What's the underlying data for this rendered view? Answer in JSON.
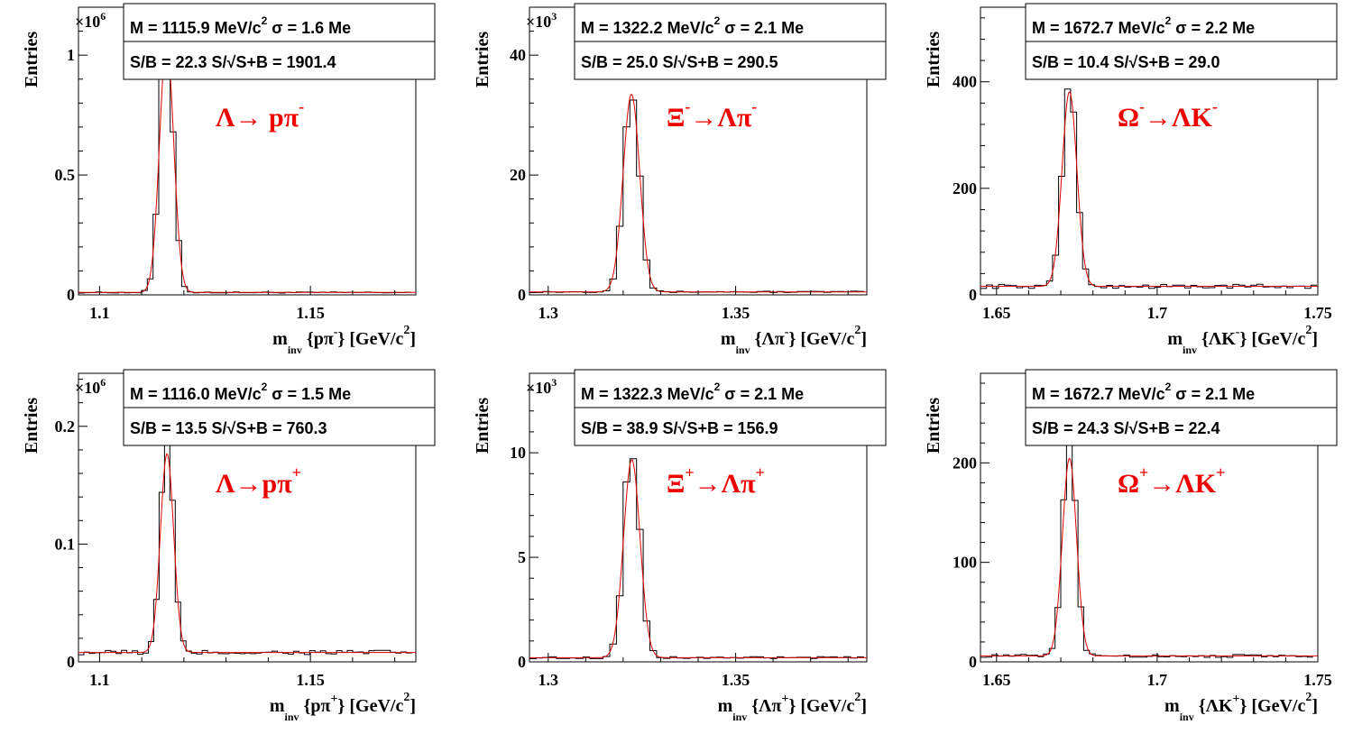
{
  "chart_data": [
    {
      "type": "histogram",
      "panel": "top-left",
      "ylabel": "Entries",
      "xlabel_main": "m",
      "xlabel_sub": "inv",
      "xlabel_rest": "{pπ",
      "xlabel_sup": "-",
      "xlabel_unit": "} [GeV/c",
      "xlabel_unit_sup": "2",
      "xlabel_close": "]",
      "multiplier_base": "×10",
      "multiplier_exp": "6",
      "xlim": [
        1.095,
        1.175
      ],
      "ylim": [
        0,
        1.2
      ],
      "xticks": [
        1.1,
        1.15
      ],
      "xtick_labels": [
        "1.1",
        "1.15"
      ],
      "yticks": [
        0,
        0.5,
        1
      ],
      "ytick_labels": [
        "0",
        "0.5",
        "1"
      ],
      "stats_line1": "M = 1115.9 MeV/c",
      "stats_line1_sup": "2",
      "stats_line1_sigma": "σ = 1.6 Me",
      "stats_line2": "S/B = 22.3   S/√S+B = 1901.4",
      "reaction": "Λ→ pπ",
      "reaction_sup": "-",
      "peak": 1115.9,
      "sigma": 1.6,
      "peak_height": 1.13,
      "background": 0.01
    },
    {
      "type": "histogram",
      "panel": "top-middle",
      "ylabel": "Entries",
      "xlabel_main": "m",
      "xlabel_sub": "inv",
      "xlabel_rest": "{Λπ",
      "xlabel_sup": "-",
      "xlabel_unit": "} [GeV/c",
      "xlabel_unit_sup": "2",
      "xlabel_close": "]",
      "multiplier_base": "×10",
      "multiplier_exp": "3",
      "xlim": [
        1.295,
        1.385
      ],
      "ylim": [
        0,
        48
      ],
      "xticks": [
        1.3,
        1.35
      ],
      "xtick_labels": [
        "1.3",
        "1.35"
      ],
      "yticks": [
        0,
        20,
        40
      ],
      "ytick_labels": [
        "0",
        "20",
        "40"
      ],
      "stats_line1": "M = 1322.2 MeV/c",
      "stats_line1_sup": "2",
      "stats_line1_sigma": "σ = 2.1 Me",
      "stats_line2": "S/B = 25.0    S/√S+B = 290.5",
      "reaction": "Ξ",
      "reaction_sup": "-",
      "reaction_rest": "→Λπ",
      "reaction_rest_sup": "-",
      "peak": 1322.2,
      "sigma": 2.1,
      "peak_height": 36,
      "background": 0.5
    },
    {
      "type": "histogram",
      "panel": "top-right",
      "ylabel": "Entries",
      "xlabel_main": "m",
      "xlabel_sub": "inv",
      "xlabel_rest": "{ΛK",
      "xlabel_sup": "-",
      "xlabel_unit": "} [GeV/c",
      "xlabel_unit_sup": "2",
      "xlabel_close": "]",
      "xlim": [
        1.645,
        1.75
      ],
      "ylim": [
        0,
        540
      ],
      "xticks": [
        1.65,
        1.7,
        1.75
      ],
      "xtick_labels": [
        "1.65",
        "1.7",
        "1.75"
      ],
      "yticks": [
        0,
        200,
        400
      ],
      "ytick_labels": [
        "0",
        "200",
        "400"
      ],
      "stats_line1": "M = 1672.7 MeV/c",
      "stats_line1_sup": "2",
      "stats_line1_sigma": "σ = 2.2 Me",
      "stats_line2": "S/B = 10.4    S/√S+B = 29.0",
      "reaction": "Ω",
      "reaction_sup": "-",
      "reaction_rest": "→ΛK",
      "reaction_rest_sup": "-",
      "peak": 1672.7,
      "sigma": 2.2,
      "peak_height": 410,
      "background": 16
    },
    {
      "type": "histogram",
      "panel": "bottom-left",
      "ylabel": "Entries",
      "xlabel_main": "m",
      "xlabel_sub": "inv",
      "xlabel_rest": "{pπ",
      "xlabel_sup": "+",
      "xlabel_unit": "} [GeV/c",
      "xlabel_unit_sup": "2",
      "xlabel_close": "]",
      "multiplier_base": "×10",
      "multiplier_exp": "6",
      "xlim": [
        1.095,
        1.175
      ],
      "ylim": [
        0,
        0.245
      ],
      "xticks": [
        1.1,
        1.15
      ],
      "xtick_labels": [
        "1.1",
        "1.15"
      ],
      "yticks": [
        0,
        0.1,
        0.2
      ],
      "ytick_labels": [
        "0",
        "0.1",
        "0.2"
      ],
      "stats_line1": "M = 1116.0 MeV/c",
      "stats_line1_sup": "2",
      "stats_line1_sigma": "σ = 1.5 Me",
      "stats_line2": "S/B = 13.5    S/√S+B = 760.3",
      "reaction": "Λ→pπ",
      "reaction_sup": "+",
      "peak": 1116.0,
      "sigma": 1.5,
      "peak_height": 0.19,
      "background": 0.008
    },
    {
      "type": "histogram",
      "panel": "bottom-middle",
      "ylabel": "Entries",
      "xlabel_main": "m",
      "xlabel_sub": "inv",
      "xlabel_rest": "{Λπ",
      "xlabel_sup": "+",
      "xlabel_unit": "} [GeV/c",
      "xlabel_unit_sup": "2",
      "xlabel_close": "]",
      "multiplier_base": "×10",
      "multiplier_exp": "3",
      "xlim": [
        1.295,
        1.385
      ],
      "ylim": [
        0,
        13.8
      ],
      "xticks": [
        1.3,
        1.35
      ],
      "xtick_labels": [
        "1.3",
        "1.35"
      ],
      "yticks": [
        0,
        5,
        10
      ],
      "ytick_labels": [
        "0",
        "5",
        "10"
      ],
      "stats_line1": "M = 1322.3 MeV/c",
      "stats_line1_sup": "2",
      "stats_line1_sigma": "σ = 2.1 Me",
      "stats_line2": "S/B = 38.9    S/√S+B = 156.9",
      "reaction": "Ξ",
      "reaction_sup": "+",
      "reaction_rest": "→Λπ",
      "reaction_rest_sup": "+",
      "peak": 1322.3,
      "sigma": 2.1,
      "peak_height": 10.4,
      "background": 0.2
    },
    {
      "type": "histogram",
      "panel": "bottom-right",
      "ylabel": "Entries",
      "xlabel_main": "m",
      "xlabel_sub": "inv",
      "xlabel_rest": "{ΛK",
      "xlabel_sup": "+",
      "xlabel_unit": "} [GeV/c",
      "xlabel_unit_sup": "2",
      "xlabel_close": "]",
      "xlim": [
        1.645,
        1.75
      ],
      "ylim": [
        0,
        290
      ],
      "xticks": [
        1.65,
        1.7,
        1.75
      ],
      "xtick_labels": [
        "1.65",
        "1.7",
        "1.75"
      ],
      "yticks": [
        0,
        100,
        200
      ],
      "ytick_labels": [
        "0",
        "100",
        "200"
      ],
      "stats_line1": "M = 1672.7 MeV/c",
      "stats_line1_sup": "2",
      "stats_line1_sigma": "σ = 2.1 Me",
      "stats_line2": "S/B = 24.3    S/√S+B = 22.4",
      "reaction": "Ω",
      "reaction_sup": "+",
      "reaction_rest": "→ΛK",
      "reaction_rest_sup": "+",
      "peak": 1672.7,
      "sigma": 2.1,
      "peak_height": 220,
      "background": 6
    }
  ],
  "colors": {
    "histogram": "#000000",
    "fit": "#e00000",
    "reaction_label": "#ee0000"
  }
}
